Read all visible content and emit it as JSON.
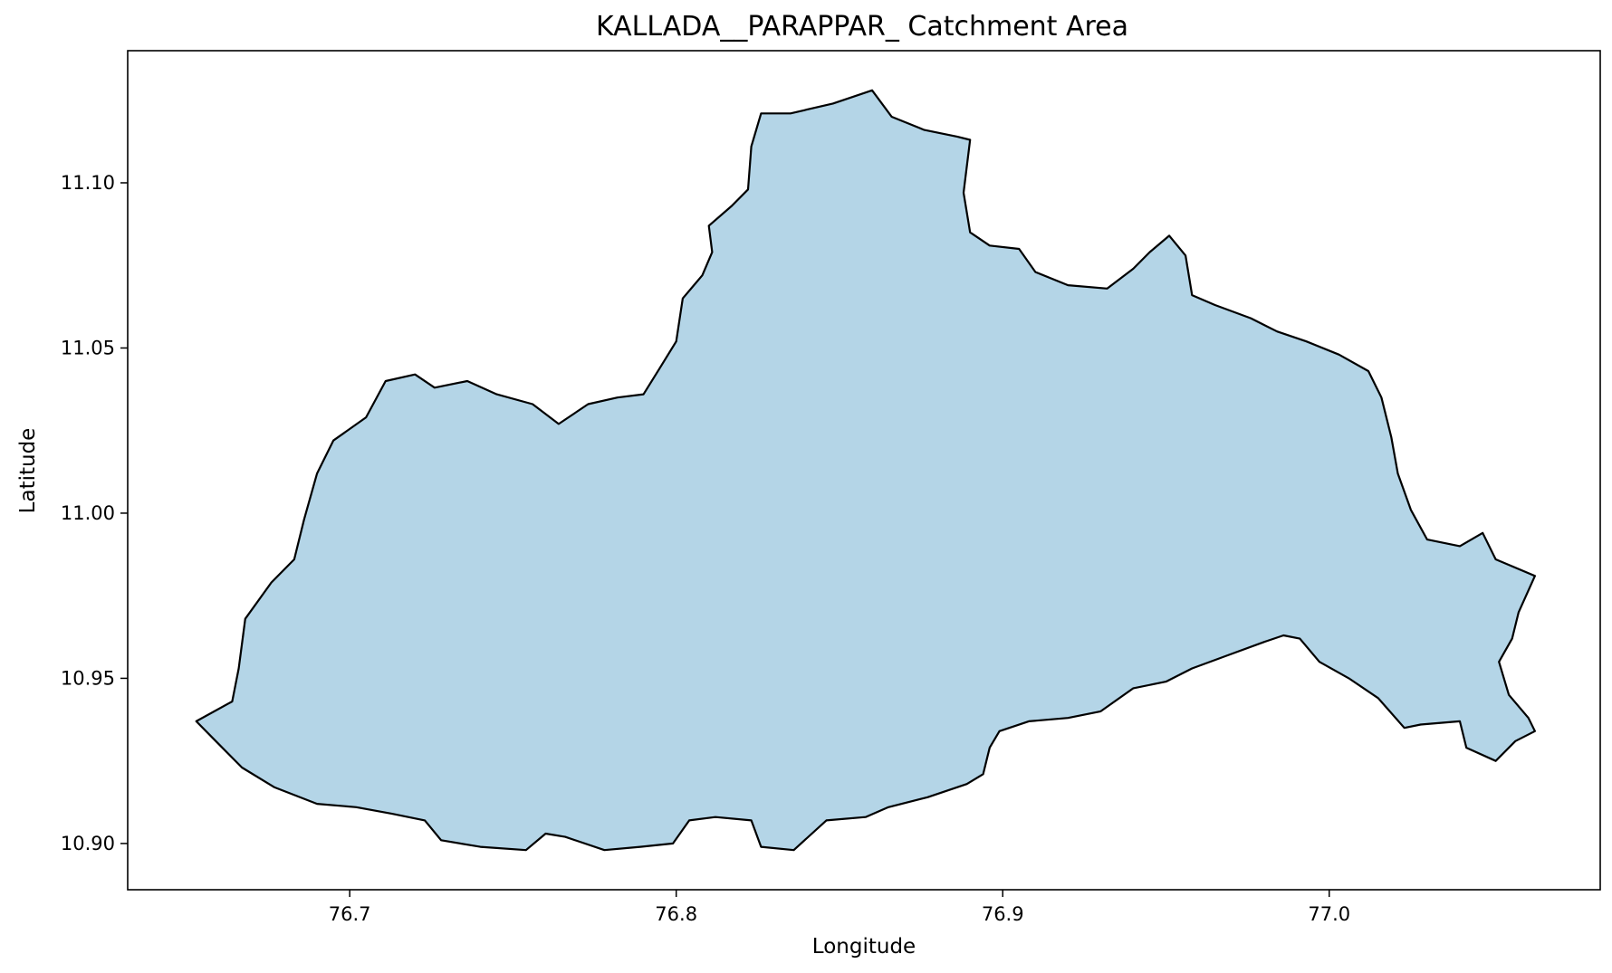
{
  "map": {
    "title": "KALLADA__PARAPPAR_ Catchment Area",
    "xlabel": "Longitude",
    "ylabel": "Latitude",
    "xlim": [
      76.632,
      77.083
    ],
    "ylim": [
      10.886,
      11.14
    ],
    "x_ticks": [
      {
        "value": 76.7,
        "label": "76.7"
      },
      {
        "value": 76.8,
        "label": "76.8"
      },
      {
        "value": 76.9,
        "label": "76.9"
      },
      {
        "value": 77.0,
        "label": "77.0"
      }
    ],
    "y_ticks": [
      {
        "value": 10.9,
        "label": "10.90"
      },
      {
        "value": 10.95,
        "label": "10.95"
      },
      {
        "value": 11.0,
        "label": "11.00"
      },
      {
        "value": 11.05,
        "label": "11.05"
      },
      {
        "value": 11.1,
        "label": "11.10"
      }
    ],
    "region": {
      "fill": "#b4d5e7",
      "stroke": "#000000",
      "boundary": [
        [
          76.653,
          10.937
        ],
        [
          76.664,
          10.943
        ],
        [
          76.666,
          10.953
        ],
        [
          76.668,
          10.968
        ],
        [
          76.676,
          10.979
        ],
        [
          76.683,
          10.986
        ],
        [
          76.686,
          10.998
        ],
        [
          76.69,
          11.012
        ],
        [
          76.695,
          11.022
        ],
        [
          76.705,
          11.029
        ],
        [
          76.711,
          11.04
        ],
        [
          76.72,
          11.042
        ],
        [
          76.726,
          11.038
        ],
        [
          76.736,
          11.04
        ],
        [
          76.745,
          11.036
        ],
        [
          76.756,
          11.033
        ],
        [
          76.764,
          11.027
        ],
        [
          76.773,
          11.033
        ],
        [
          76.782,
          11.035
        ],
        [
          76.79,
          11.036
        ],
        [
          76.795,
          11.044
        ],
        [
          76.8,
          11.052
        ],
        [
          76.802,
          11.065
        ],
        [
          76.808,
          11.072
        ],
        [
          76.811,
          11.079
        ],
        [
          76.81,
          11.087
        ],
        [
          76.817,
          11.093
        ],
        [
          76.822,
          11.098
        ],
        [
          76.823,
          11.111
        ],
        [
          76.826,
          11.121
        ],
        [
          76.835,
          11.121
        ],
        [
          76.848,
          11.124
        ],
        [
          76.86,
          11.128
        ],
        [
          76.866,
          11.12
        ],
        [
          76.876,
          11.116
        ],
        [
          76.886,
          11.114
        ],
        [
          76.89,
          11.113
        ],
        [
          76.888,
          11.097
        ],
        [
          76.89,
          11.085
        ],
        [
          76.896,
          11.081
        ],
        [
          76.905,
          11.08
        ],
        [
          76.91,
          11.073
        ],
        [
          76.92,
          11.069
        ],
        [
          76.932,
          11.068
        ],
        [
          76.94,
          11.074
        ],
        [
          76.945,
          11.079
        ],
        [
          76.951,
          11.084
        ],
        [
          76.956,
          11.078
        ],
        [
          76.958,
          11.066
        ],
        [
          76.965,
          11.063
        ],
        [
          76.976,
          11.059
        ],
        [
          76.984,
          11.055
        ],
        [
          76.993,
          11.052
        ],
        [
          77.003,
          11.048
        ],
        [
          77.012,
          11.043
        ],
        [
          77.016,
          11.035
        ],
        [
          77.019,
          11.023
        ],
        [
          77.021,
          11.012
        ],
        [
          77.025,
          11.001
        ],
        [
          77.03,
          10.992
        ],
        [
          77.04,
          10.99
        ],
        [
          77.047,
          10.994
        ],
        [
          77.051,
          10.986
        ],
        [
          77.063,
          10.981
        ],
        [
          77.058,
          10.97
        ],
        [
          77.056,
          10.962
        ],
        [
          77.052,
          10.955
        ],
        [
          77.055,
          10.945
        ],
        [
          77.061,
          10.938
        ],
        [
          77.063,
          10.934
        ],
        [
          77.057,
          10.931
        ],
        [
          77.051,
          10.925
        ],
        [
          77.042,
          10.929
        ],
        [
          77.04,
          10.937
        ],
        [
          77.028,
          10.936
        ],
        [
          77.023,
          10.935
        ],
        [
          77.015,
          10.944
        ],
        [
          77.006,
          10.95
        ],
        [
          76.997,
          10.955
        ],
        [
          76.991,
          10.962
        ],
        [
          76.986,
          10.963
        ],
        [
          76.98,
          10.961
        ],
        [
          76.969,
          10.957
        ],
        [
          76.958,
          10.953
        ],
        [
          76.95,
          10.949
        ],
        [
          76.94,
          10.947
        ],
        [
          76.93,
          10.94
        ],
        [
          76.92,
          10.938
        ],
        [
          76.908,
          10.937
        ],
        [
          76.899,
          10.934
        ],
        [
          76.896,
          10.929
        ],
        [
          76.894,
          10.921
        ],
        [
          76.889,
          10.918
        ],
        [
          76.877,
          10.914
        ],
        [
          76.865,
          10.911
        ],
        [
          76.858,
          10.908
        ],
        [
          76.846,
          10.907
        ],
        [
          76.836,
          10.898
        ],
        [
          76.826,
          10.899
        ],
        [
          76.823,
          10.907
        ],
        [
          76.812,
          10.908
        ],
        [
          76.804,
          10.907
        ],
        [
          76.799,
          10.9
        ],
        [
          76.789,
          10.899
        ],
        [
          76.778,
          10.898
        ],
        [
          76.766,
          10.902
        ],
        [
          76.76,
          10.903
        ],
        [
          76.754,
          10.898
        ],
        [
          76.74,
          10.899
        ],
        [
          76.728,
          10.901
        ],
        [
          76.723,
          10.907
        ],
        [
          76.713,
          10.909
        ],
        [
          76.702,
          10.911
        ],
        [
          76.69,
          10.912
        ],
        [
          76.677,
          10.917
        ],
        [
          76.667,
          10.923
        ],
        [
          76.659,
          10.931
        ],
        [
          76.653,
          10.937
        ]
      ]
    }
  }
}
